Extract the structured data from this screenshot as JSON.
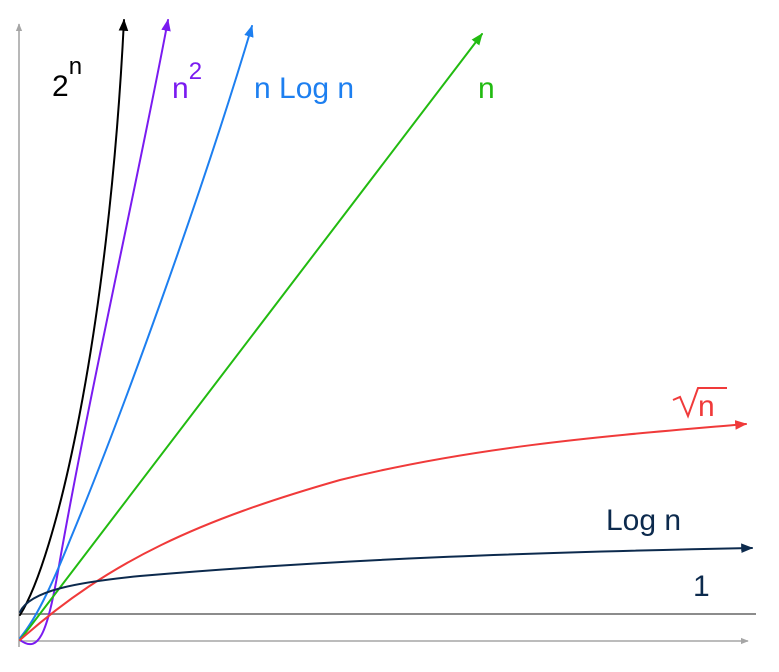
{
  "chart_data": {
    "type": "line",
    "title": "",
    "xlabel": "",
    "ylabel": "",
    "grid": false,
    "legend": "none",
    "axis_color": "#a6a6a6",
    "series": [
      {
        "name": "2^n",
        "label_base": "2",
        "label_sup": "n",
        "color": "#000000",
        "curve": "exponential"
      },
      {
        "name": "n^2",
        "label_base": "n",
        "label_sup": "2",
        "color": "#7a1bf0",
        "curve": "quadratic"
      },
      {
        "name": "n Log n",
        "label": "n Log n",
        "color": "#1d7ff0",
        "curve": "linearithmic"
      },
      {
        "name": "n",
        "label": "n",
        "color": "#22bb11",
        "curve": "linear"
      },
      {
        "name": "√n",
        "label_radicand": "n",
        "color": "#f03a3a",
        "curve": "square-root"
      },
      {
        "name": "Log n",
        "label": "Log n",
        "color": "#0c2a4d",
        "curve": "logarithmic"
      },
      {
        "name": "1",
        "label": "1",
        "color": "#0c2a4d",
        "curve": "constant"
      }
    ]
  }
}
